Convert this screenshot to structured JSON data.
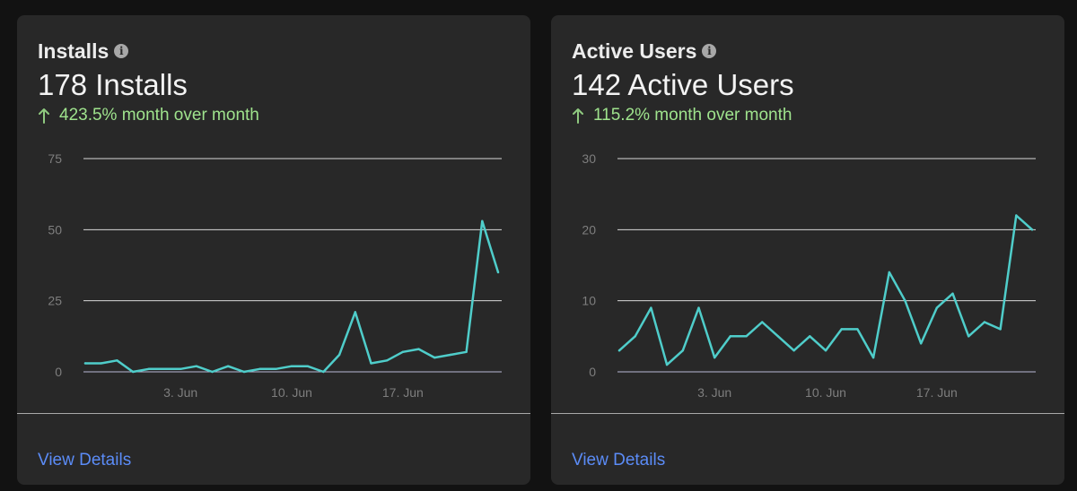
{
  "cards": [
    {
      "title": "Installs",
      "headline": "178 Installs",
      "change": "423.5% month over month",
      "link_label": "View Details"
    },
    {
      "title": "Active Users",
      "headline": "142 Active Users",
      "change": "115.2% month over month",
      "link_label": "View Details"
    }
  ],
  "colors": {
    "line": "#4fcdca",
    "positive": "#9fe38d",
    "link": "#5b8cf7"
  },
  "chart_data": [
    {
      "type": "line",
      "x_tick_labels": [
        "3. Jun",
        "10. Jun",
        "17. Jun"
      ],
      "x_tick_positions": [
        6,
        13,
        20
      ],
      "y_ticks": [
        0,
        25,
        50,
        75
      ],
      "ylim": [
        0,
        75
      ],
      "x_range": [
        0,
        26
      ],
      "values": [
        3,
        3,
        4,
        0,
        1,
        1,
        1,
        2,
        0,
        2,
        0,
        1,
        1,
        2,
        2,
        0,
        6,
        21,
        3,
        4,
        7,
        8,
        5,
        6,
        7,
        53,
        35
      ]
    },
    {
      "type": "line",
      "x_tick_labels": [
        "3. Jun",
        "10. Jun",
        "17. Jun"
      ],
      "x_tick_positions": [
        6,
        13,
        20
      ],
      "y_ticks": [
        0,
        10,
        20,
        30
      ],
      "ylim": [
        0,
        30
      ],
      "x_range": [
        0,
        26
      ],
      "values": [
        3,
        5,
        9,
        1,
        3,
        9,
        2,
        5,
        5,
        7,
        5,
        3,
        5,
        3,
        6,
        6,
        2,
        14,
        10,
        4,
        9,
        11,
        5,
        7,
        6,
        22,
        20
      ]
    }
  ]
}
